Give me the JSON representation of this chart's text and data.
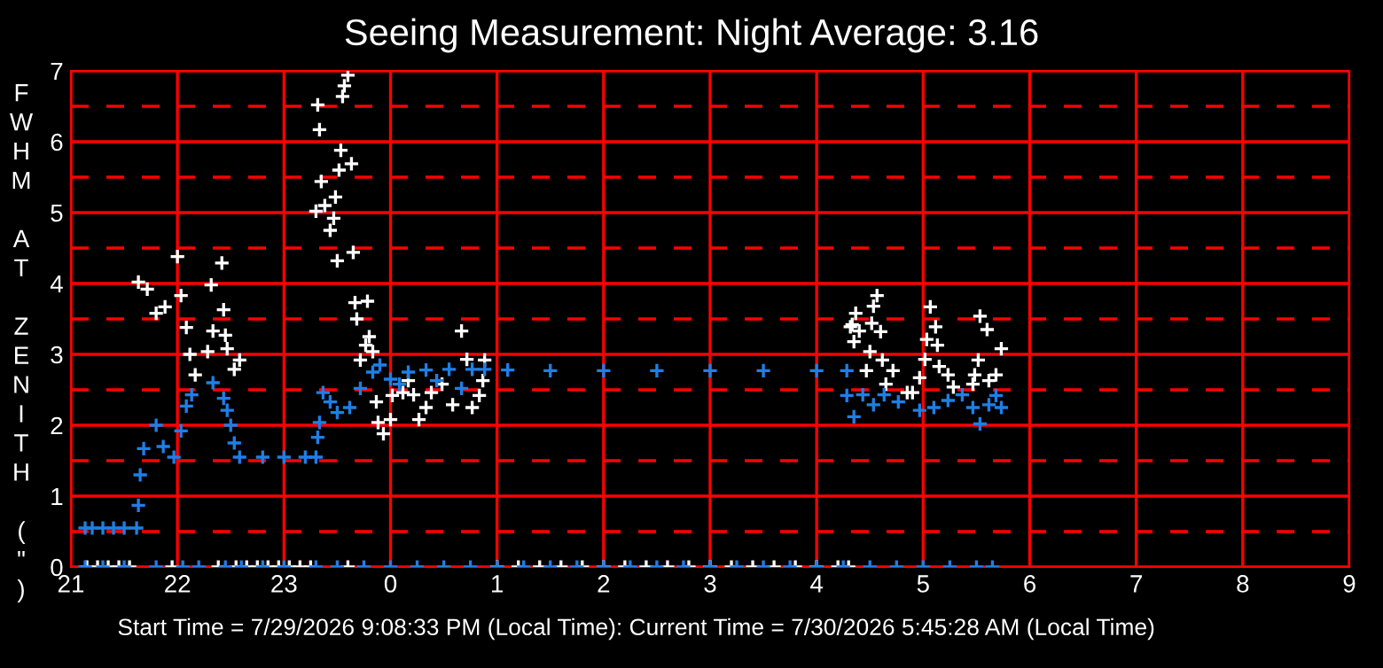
{
  "chart_data": {
    "type": "scatter",
    "title": "Seeing Measurement: Night Average: 3.16",
    "ylabel": "FWHM AT ZENITH (\")",
    "marker": "cross",
    "grid": true,
    "xlim": [
      "2026-07-29T21:00",
      "2026-07-30T09:00"
    ],
    "xticks": [
      {
        "value": "2026-07-29T21:00",
        "label": "21"
      },
      {
        "value": "2026-07-29T22:00",
        "label": "22"
      },
      {
        "value": "2026-07-29T23:00",
        "label": "23"
      },
      {
        "value": "2026-07-30T00:00",
        "label": "0"
      },
      {
        "value": "2026-07-30T01:00",
        "label": "1"
      },
      {
        "value": "2026-07-30T02:00",
        "label": "2"
      },
      {
        "value": "2026-07-30T03:00",
        "label": "3"
      },
      {
        "value": "2026-07-30T04:00",
        "label": "4"
      },
      {
        "value": "2026-07-30T05:00",
        "label": "5"
      },
      {
        "value": "2026-07-30T06:00",
        "label": "6"
      },
      {
        "value": "2026-07-30T07:00",
        "label": "7"
      },
      {
        "value": "2026-07-30T08:00",
        "label": "8"
      },
      {
        "value": "2026-07-30T09:00",
        "label": "9"
      }
    ],
    "ylim": [
      0,
      7
    ],
    "yticks": [
      0,
      1,
      2,
      3,
      4,
      5,
      6,
      7
    ],
    "ref_lines": [
      {
        "axis": "y",
        "value": 0.5,
        "color": "#ff0000",
        "line_style": "dashed"
      },
      {
        "axis": "y",
        "value": 1.5,
        "color": "#ff0000",
        "line_style": "dashed"
      },
      {
        "axis": "y",
        "value": 2.5,
        "color": "#ff0000",
        "line_style": "dashed"
      },
      {
        "axis": "y",
        "value": 3.5,
        "color": "#ff0000",
        "line_style": "dashed"
      },
      {
        "axis": "y",
        "value": 4.5,
        "color": "#ff0000",
        "line_style": "dashed"
      },
      {
        "axis": "y",
        "value": 5.5,
        "color": "#ff0000",
        "line_style": "dashed"
      },
      {
        "axis": "y",
        "value": 6.5,
        "color": "#ff0000",
        "line_style": "dashed"
      }
    ],
    "annotations": [
      "Start Time = 7/29/2026 9:08:33 PM (Local Time): Current Time = 7/30/2026 5:45:28 AM (Local Time)"
    ],
    "series": [
      {
        "color": "#ffffff",
        "x": [
          "2026-07-29T21:38",
          "2026-07-29T21:43",
          "2026-07-29T21:48",
          "2026-07-29T21:53",
          "2026-07-29T22:00",
          "2026-07-29T22:02",
          "2026-07-29T22:05",
          "2026-07-29T22:07",
          "2026-07-29T22:10",
          "2026-07-29T22:17",
          "2026-07-29T22:19",
          "2026-07-29T22:20",
          "2026-07-29T22:25",
          "2026-07-29T22:26",
          "2026-07-29T22:27",
          "2026-07-29T22:28",
          "2026-07-29T22:32",
          "2026-07-29T22:35",
          "2026-07-29T23:36",
          "2026-07-29T23:34",
          "2026-07-29T23:33",
          "2026-07-29T23:19",
          "2026-07-29T23:20",
          "2026-07-29T23:32",
          "2026-07-29T23:38",
          "2026-07-29T23:31",
          "2026-07-29T23:21",
          "2026-07-29T23:29",
          "2026-07-29T23:23",
          "2026-07-29T23:18",
          "2026-07-29T23:28",
          "2026-07-29T23:26",
          "2026-07-29T23:39",
          "2026-07-29T23:30",
          "2026-07-29T23:40",
          "2026-07-29T23:47",
          "2026-07-29T23:41",
          "2026-07-29T23:48",
          "2026-07-29T23:46",
          "2026-07-29T23:50",
          "2026-07-29T23:43",
          "2026-07-29T23:52",
          "2026-07-29T23:53",
          "2026-07-29T23:56",
          "2026-07-30T00:00",
          "2026-07-30T00:01",
          "2026-07-30T00:07",
          "2026-07-30T00:10",
          "2026-07-30T00:13",
          "2026-07-30T00:16",
          "2026-07-30T00:20",
          "2026-07-30T00:23",
          "2026-07-30T00:29",
          "2026-07-30T00:35",
          "2026-07-30T00:40",
          "2026-07-30T00:43",
          "2026-07-30T00:46",
          "2026-07-30T00:50",
          "2026-07-30T00:52",
          "2026-07-30T00:53",
          "2026-07-30T04:19",
          "2026-07-30T04:34",
          "2026-07-30T04:32",
          "2026-07-30T04:22",
          "2026-07-30T04:20",
          "2026-07-30T04:31",
          "2026-07-30T04:24",
          "2026-07-30T04:21",
          "2026-07-30T04:36",
          "2026-07-30T04:30",
          "2026-07-30T04:28",
          "2026-07-30T04:37",
          "2026-07-30T04:43",
          "2026-07-30T04:39",
          "2026-07-30T04:51",
          "2026-07-30T04:54",
          "2026-07-30T04:58",
          "2026-07-30T05:01",
          "2026-07-30T05:02",
          "2026-07-30T05:04",
          "2026-07-30T05:07",
          "2026-07-30T05:08",
          "2026-07-30T05:09",
          "2026-07-30T05:14",
          "2026-07-30T05:17",
          "2026-07-30T05:28",
          "2026-07-30T05:29",
          "2026-07-30T05:31",
          "2026-07-30T05:32",
          "2026-07-30T05:36",
          "2026-07-30T05:37",
          "2026-07-30T05:41",
          "2026-07-30T05:44",
          "2026-07-29T21:09",
          "2026-07-29T21:15",
          "2026-07-29T21:21",
          "2026-07-29T21:27",
          "2026-07-29T21:33",
          "2026-07-29T21:57",
          "2026-07-29T22:23",
          "2026-07-29T22:33",
          "2026-07-29T22:39",
          "2026-07-29T22:45",
          "2026-07-29T22:51",
          "2026-07-29T22:57",
          "2026-07-29T23:03",
          "2026-07-29T23:09",
          "2026-07-29T23:15",
          "2026-07-29T23:36",
          "2026-07-30T01:00",
          "2026-07-30T01:12",
          "2026-07-30T01:24",
          "2026-07-30T01:36",
          "2026-07-30T01:48",
          "2026-07-30T02:00",
          "2026-07-30T02:12",
          "2026-07-30T02:24",
          "2026-07-30T02:36",
          "2026-07-30T02:48",
          "2026-07-30T03:00",
          "2026-07-30T03:12",
          "2026-07-30T03:24",
          "2026-07-30T03:36",
          "2026-07-30T03:48",
          "2026-07-30T04:00",
          "2026-07-30T04:12",
          "2026-07-30T04:18"
        ],
        "values": [
          4.02,
          3.92,
          3.58,
          3.67,
          4.38,
          3.83,
          3.38,
          3.0,
          2.71,
          3.04,
          3.98,
          3.33,
          4.29,
          3.63,
          3.27,
          3.08,
          2.79,
          2.92,
          6.94,
          6.79,
          6.64,
          6.52,
          6.17,
          5.88,
          5.69,
          5.6,
          5.44,
          5.22,
          5.1,
          5.02,
          4.92,
          4.75,
          4.44,
          4.32,
          3.73,
          3.75,
          3.5,
          3.25,
          3.13,
          3.04,
          2.92,
          2.33,
          2.04,
          1.88,
          2.08,
          2.42,
          2.46,
          2.63,
          2.43,
          2.08,
          2.25,
          2.46,
          2.58,
          2.29,
          3.33,
          2.93,
          2.25,
          2.42,
          2.63,
          2.92,
          3.39,
          3.83,
          3.68,
          3.58,
          3.42,
          3.44,
          3.33,
          3.18,
          3.32,
          3.04,
          2.77,
          2.92,
          2.77,
          2.58,
          2.46,
          2.46,
          2.67,
          2.93,
          3.21,
          3.67,
          3.39,
          3.13,
          2.83,
          2.71,
          2.54,
          2.58,
          2.71,
          2.92,
          3.54,
          3.35,
          2.63,
          2.71,
          3.08,
          0,
          0,
          0,
          0,
          0,
          0,
          0,
          0,
          0,
          0,
          0,
          0,
          0,
          0,
          0,
          0,
          0,
          0,
          0,
          0,
          0,
          0,
          0,
          0,
          0,
          0,
          0,
          0,
          0,
          0,
          0,
          0,
          0,
          0
        ]
      },
      {
        "color": "#1e7fe6",
        "x": [
          "2026-07-29T21:08",
          "2026-07-29T21:12",
          "2026-07-29T21:18",
          "2026-07-29T21:24",
          "2026-07-29T21:30",
          "2026-07-29T21:37",
          "2026-07-29T21:38",
          "2026-07-29T21:39",
          "2026-07-29T21:41",
          "2026-07-29T21:48",
          "2026-07-29T21:52",
          "2026-07-29T21:58",
          "2026-07-29T22:02",
          "2026-07-29T22:05",
          "2026-07-29T22:08",
          "2026-07-29T22:20",
          "2026-07-29T22:26",
          "2026-07-29T22:28",
          "2026-07-29T22:30",
          "2026-07-29T22:32",
          "2026-07-29T22:35",
          "2026-07-29T22:48",
          "2026-07-29T23:00",
          "2026-07-29T23:12",
          "2026-07-29T23:18",
          "2026-07-29T23:19",
          "2026-07-29T23:20",
          "2026-07-29T23:22",
          "2026-07-29T23:26",
          "2026-07-29T23:30",
          "2026-07-29T23:37",
          "2026-07-29T23:43",
          "2026-07-29T23:50",
          "2026-07-29T23:54",
          "2026-07-30T00:00",
          "2026-07-30T00:05",
          "2026-07-30T00:10",
          "2026-07-30T00:20",
          "2026-07-30T00:26",
          "2026-07-30T00:33",
          "2026-07-30T00:40",
          "2026-07-30T00:46",
          "2026-07-30T00:53",
          "2026-07-30T01:06",
          "2026-07-30T01:30",
          "2026-07-30T02:00",
          "2026-07-30T02:30",
          "2026-07-30T03:00",
          "2026-07-30T03:30",
          "2026-07-30T04:00",
          "2026-07-30T04:17",
          "2026-07-30T04:17",
          "2026-07-30T04:21",
          "2026-07-30T04:26",
          "2026-07-30T04:32",
          "2026-07-30T04:38",
          "2026-07-30T04:46",
          "2026-07-30T04:58",
          "2026-07-30T05:06",
          "2026-07-30T05:14",
          "2026-07-30T05:22",
          "2026-07-30T05:28",
          "2026-07-30T05:32",
          "2026-07-30T05:37",
          "2026-07-30T05:41",
          "2026-07-30T05:44",
          "2026-07-29T21:08",
          "2026-07-29T21:18",
          "2026-07-29T21:30",
          "2026-07-29T21:48",
          "2026-07-29T22:03",
          "2026-07-29T22:12",
          "2026-07-29T22:27",
          "2026-07-29T22:36",
          "2026-07-29T22:48",
          "2026-07-29T23:00",
          "2026-07-29T23:18",
          "2026-07-29T23:30",
          "2026-07-29T23:45",
          "2026-07-30T00:00",
          "2026-07-30T00:15",
          "2026-07-30T00:30",
          "2026-07-30T00:45",
          "2026-07-30T01:00",
          "2026-07-30T01:15",
          "2026-07-30T01:30",
          "2026-07-30T01:45",
          "2026-07-30T02:00",
          "2026-07-30T02:15",
          "2026-07-30T02:30",
          "2026-07-30T02:45",
          "2026-07-30T03:00",
          "2026-07-30T03:15",
          "2026-07-30T03:30",
          "2026-07-30T03:45",
          "2026-07-30T04:00",
          "2026-07-30T04:15",
          "2026-07-30T04:30",
          "2026-07-30T04:45",
          "2026-07-30T05:00",
          "2026-07-30T05:15",
          "2026-07-30T05:30",
          "2026-07-30T05:39"
        ],
        "values": [
          0.55,
          0.55,
          0.55,
          0.55,
          0.55,
          0.55,
          0.87,
          1.3,
          1.67,
          2.0,
          1.7,
          1.55,
          1.92,
          2.27,
          2.43,
          2.6,
          2.38,
          2.21,
          2.0,
          1.75,
          1.55,
          1.55,
          1.55,
          1.55,
          1.55,
          1.83,
          2.04,
          2.46,
          2.33,
          2.18,
          2.25,
          2.52,
          2.75,
          2.85,
          2.65,
          2.58,
          2.75,
          2.78,
          2.63,
          2.79,
          2.52,
          2.79,
          2.79,
          2.78,
          2.77,
          2.77,
          2.77,
          2.77,
          2.77,
          2.77,
          2.77,
          2.42,
          2.12,
          2.43,
          2.29,
          2.43,
          2.33,
          2.21,
          2.25,
          2.35,
          2.43,
          2.25,
          2.02,
          2.29,
          2.42,
          2.25,
          0,
          0,
          0,
          0,
          0,
          0,
          0,
          0,
          0,
          0,
          0,
          0,
          0,
          0,
          0,
          0,
          0,
          0,
          0,
          0,
          0,
          0,
          0,
          0,
          0,
          0,
          0,
          0,
          0,
          0,
          0,
          0,
          0,
          0,
          0,
          0,
          0
        ]
      }
    ]
  }
}
